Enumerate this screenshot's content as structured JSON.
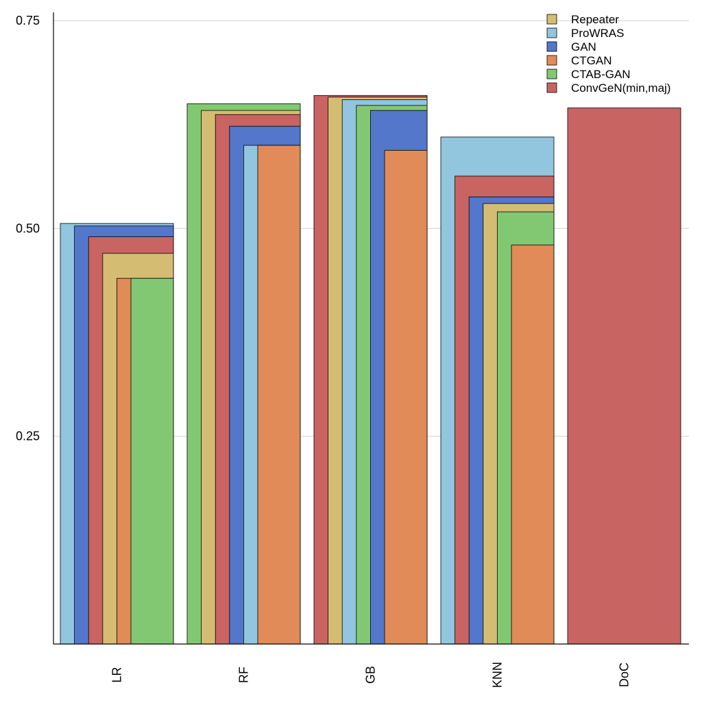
{
  "chart_data": {
    "type": "bar",
    "style": "overlapping-staircase",
    "categories": [
      "LR",
      "RF",
      "GB",
      "KNN",
      "DoC"
    ],
    "ylim": [
      0,
      0.76
    ],
    "yticks": [
      0.25,
      0.5,
      0.75
    ],
    "ytick_labels": [
      "0.25",
      "0.50",
      "0.75"
    ],
    "grid": true,
    "legend_position": "top-right",
    "series": [
      {
        "name": "Repeater",
        "color": "#D4BC72",
        "values": [
          0.47,
          0.642,
          0.658,
          0.53,
          null
        ]
      },
      {
        "name": "ProWRAS",
        "color": "#92C5DE",
        "values": [
          0.506,
          0.6,
          0.655,
          0.61,
          null
        ]
      },
      {
        "name": "GAN",
        "color": "#5277CB",
        "values": [
          0.503,
          0.623,
          0.642,
          0.538,
          null
        ]
      },
      {
        "name": "CTGAN",
        "color": "#E08B58",
        "values": [
          0.44,
          0.6,
          0.594,
          0.48,
          null
        ]
      },
      {
        "name": "CTAB-GAN",
        "color": "#82C872",
        "values": [
          0.44,
          0.65,
          0.648,
          0.52,
          null
        ]
      },
      {
        "name": "ConvGeN(min,maj)",
        "color": "#C86462",
        "values": [
          0.49,
          0.637,
          0.66,
          0.563,
          0.645
        ]
      }
    ]
  }
}
